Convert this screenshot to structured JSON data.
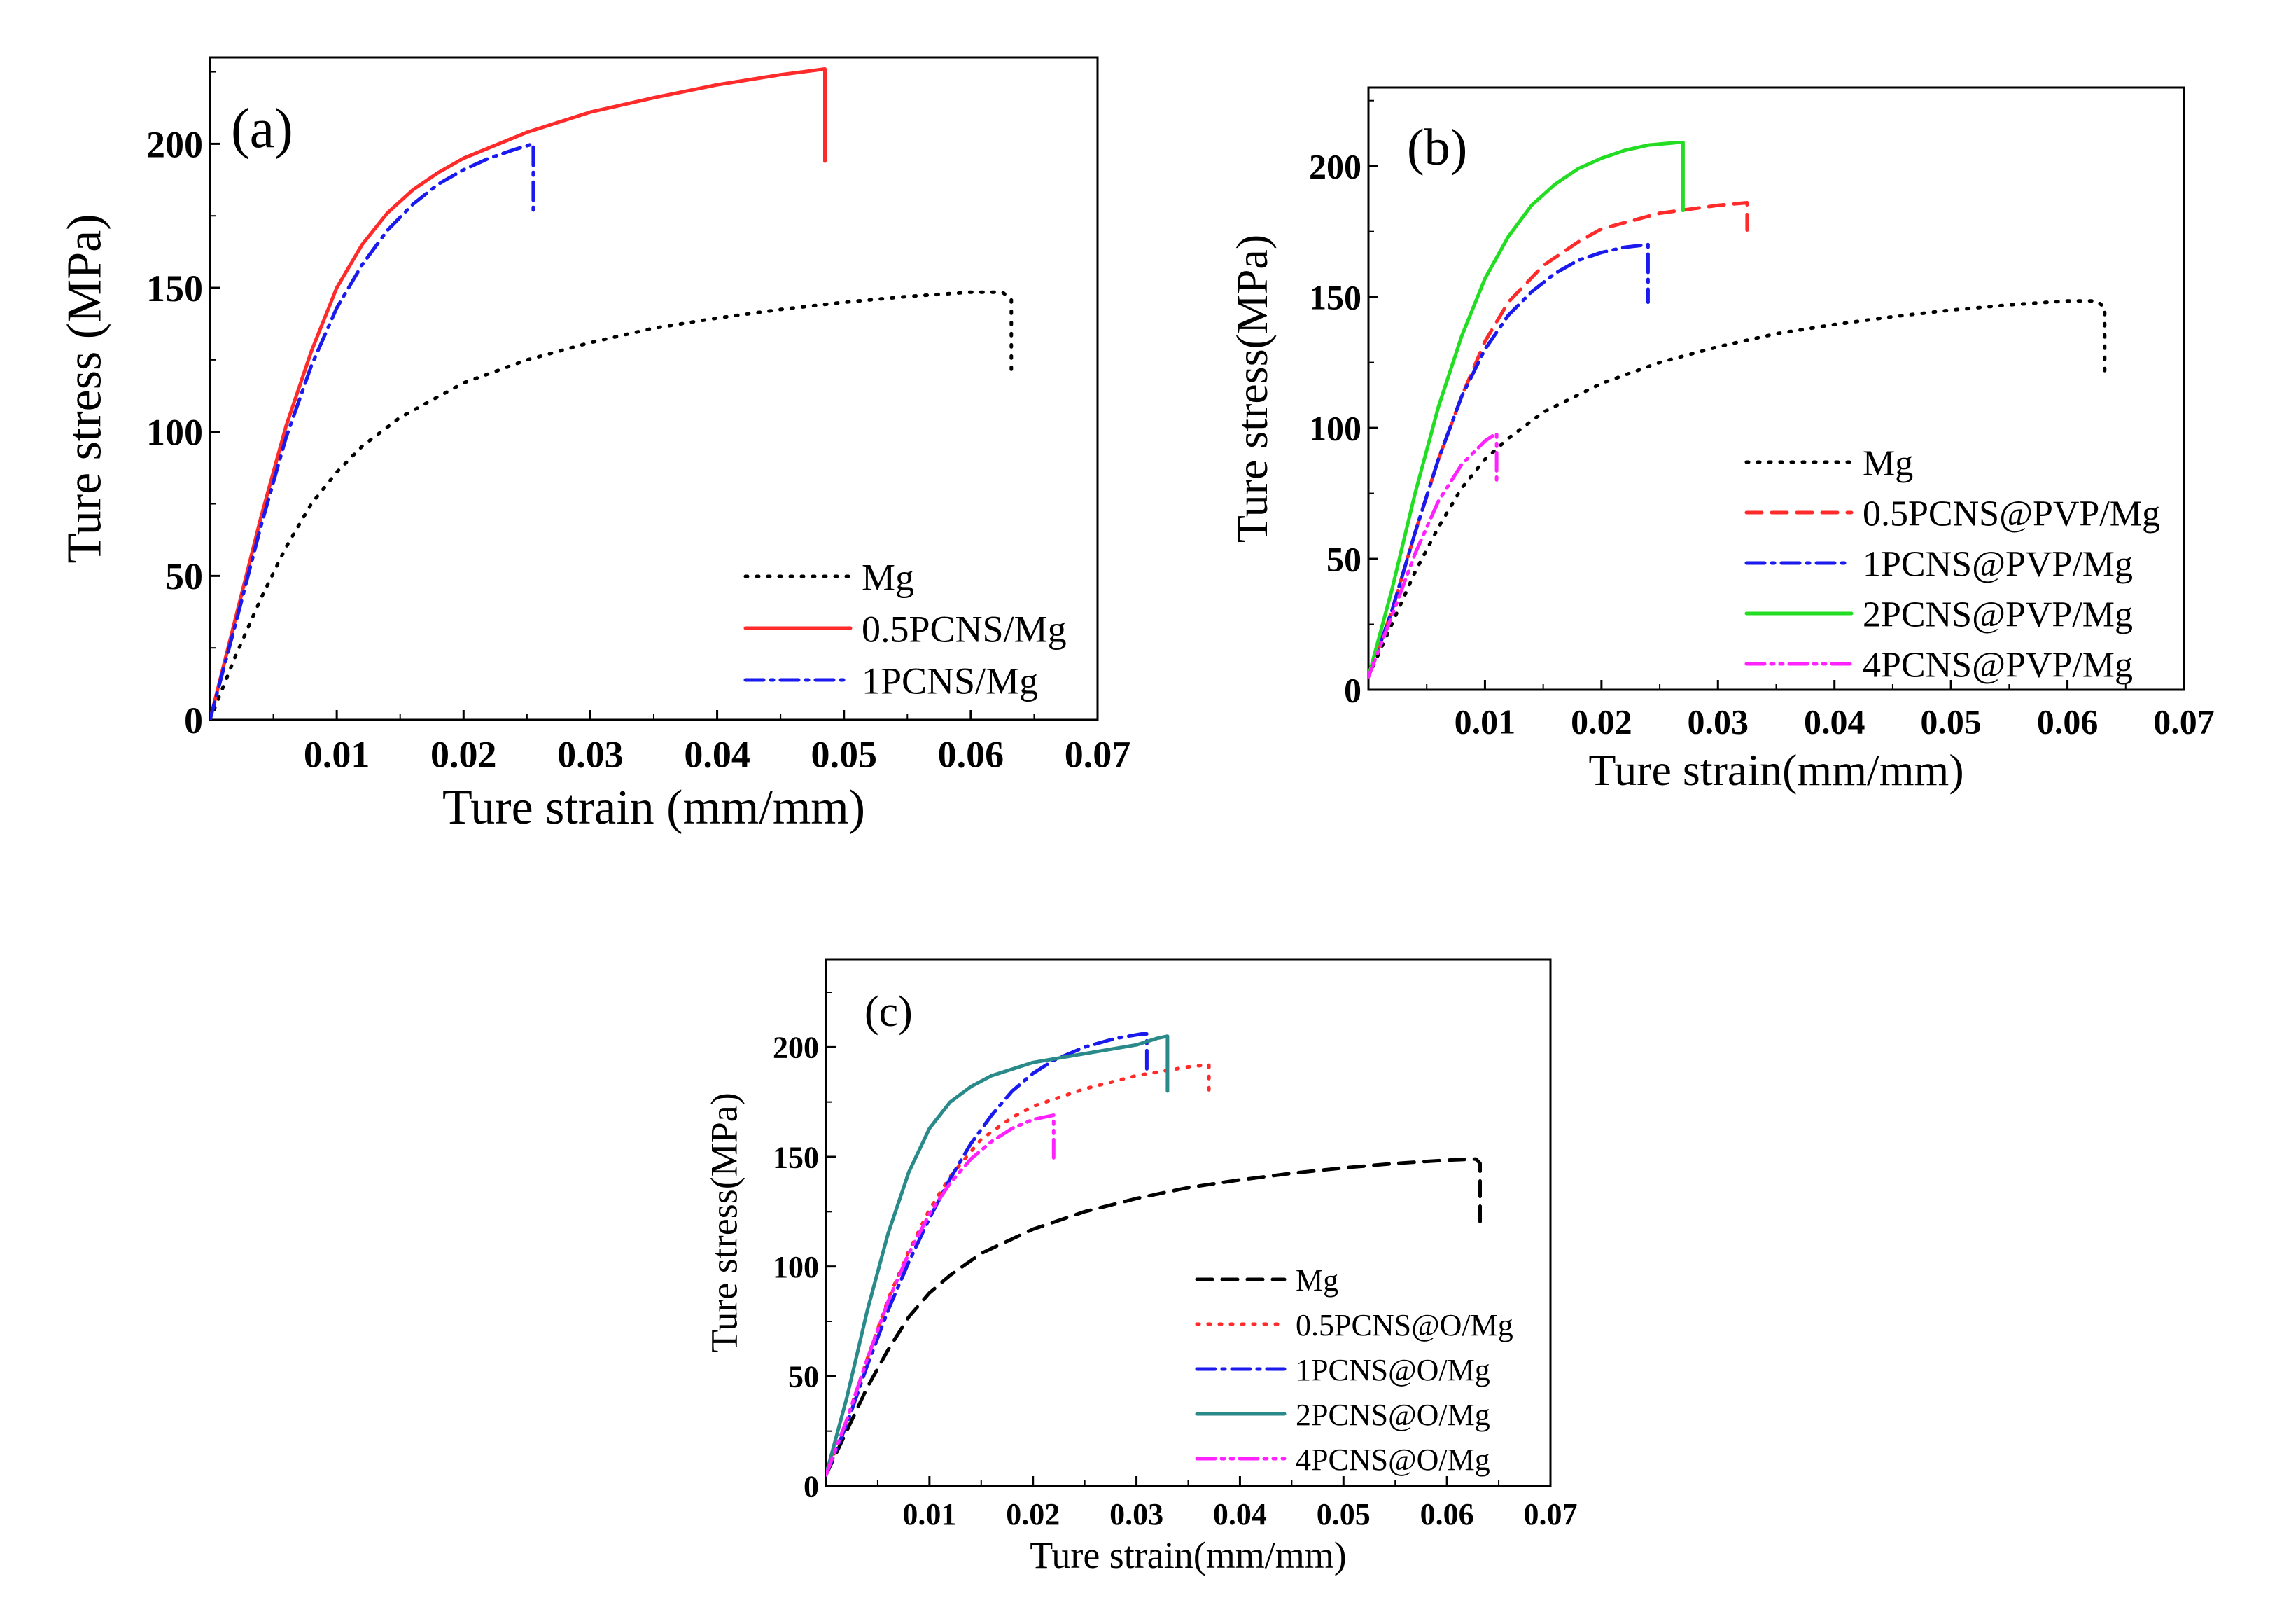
{
  "colors": {
    "black": "#000000",
    "red": "#ff2a2a",
    "blue": "#1a1aee",
    "green": "#22dd22",
    "magenta": "#ff22ff",
    "teal": "#2a8a8a"
  },
  "chart_data": [
    {
      "id": "a",
      "type": "line",
      "panel_label": "(a)",
      "xlabel": "Ture strain (mm/mm)",
      "ylabel": "Ture stress (MPa)",
      "xlim": [
        0,
        0.07
      ],
      "ylim": [
        0,
        230
      ],
      "xticks": [
        0.01,
        0.02,
        0.03,
        0.04,
        0.05,
        0.06,
        0.07
      ],
      "xtick_labels": [
        "0.01",
        "0.02",
        "0.03",
        "0.04",
        "0.05",
        "0.06",
        "0.07"
      ],
      "yticks": [
        0,
        50,
        100,
        150,
        200
      ],
      "ytick_labels": [
        "0",
        "50",
        "100",
        "150",
        "200"
      ],
      "legend_position": "bottom-right",
      "series": [
        {
          "name": "Mg",
          "color": "#000000",
          "dash": "dotted",
          "x": [
            0,
            0.002,
            0.004,
            0.006,
            0.008,
            0.01,
            0.012,
            0.015,
            0.02,
            0.025,
            0.03,
            0.035,
            0.04,
            0.045,
            0.05,
            0.055,
            0.06,
            0.0625,
            0.0632,
            0.0632
          ],
          "y": [
            0,
            22,
            42,
            60,
            75,
            86,
            95,
            105,
            117,
            125,
            131,
            136,
            139.5,
            142.5,
            145,
            147,
            148.5,
            148.5,
            146,
            120
          ]
        },
        {
          "name": "0.5PCNS/Mg",
          "color": "#ff2a2a",
          "dash": "solid",
          "x": [
            0,
            0.002,
            0.004,
            0.006,
            0.008,
            0.01,
            0.012,
            0.014,
            0.016,
            0.018,
            0.02,
            0.025,
            0.03,
            0.035,
            0.04,
            0.045,
            0.0485,
            0.0485
          ],
          "y": [
            0,
            35,
            70,
            102,
            128,
            150,
            165,
            176,
            184,
            190,
            195,
            204,
            211,
            216,
            220.5,
            224,
            226,
            194
          ]
        },
        {
          "name": "1PCNS/Mg",
          "color": "#1a1aee",
          "dash": "dashdot",
          "x": [
            0,
            0.002,
            0.004,
            0.006,
            0.008,
            0.01,
            0.012,
            0.014,
            0.016,
            0.018,
            0.02,
            0.022,
            0.024,
            0.0255,
            0.0255
          ],
          "y": [
            0,
            33,
            67,
            98,
            123,
            143,
            158,
            170,
            179,
            186,
            191,
            195,
            198,
            200,
            177
          ]
        }
      ]
    },
    {
      "id": "b",
      "type": "line",
      "panel_label": "(b)",
      "xlabel": "Ture strain(mm/mm)",
      "ylabel": "Ture stress(MPa)",
      "xlim": [
        0,
        0.07
      ],
      "ylim": [
        0,
        230
      ],
      "xticks": [
        0.01,
        0.02,
        0.03,
        0.04,
        0.05,
        0.06,
        0.07
      ],
      "xtick_labels": [
        "0.01",
        "0.02",
        "0.03",
        "0.04",
        "0.05",
        "0.06",
        "0.07"
      ],
      "yticks": [
        0,
        50,
        100,
        150,
        200
      ],
      "ytick_labels": [
        "0",
        "50",
        "100",
        "150",
        "200"
      ],
      "legend_position": "bottom-right",
      "series": [
        {
          "name": "Mg",
          "color": "#000000",
          "dash": "dotted",
          "x": [
            0,
            0.002,
            0.004,
            0.006,
            0.008,
            0.01,
            0.012,
            0.015,
            0.02,
            0.025,
            0.03,
            0.035,
            0.04,
            0.045,
            0.05,
            0.055,
            0.06,
            0.0625,
            0.0632,
            0.0632
          ],
          "y": [
            5,
            25,
            45,
            62,
            77,
            88,
            96,
            106,
            117,
            125,
            131,
            136,
            139.5,
            142.5,
            145,
            147,
            148.5,
            148.5,
            146,
            120
          ]
        },
        {
          "name": "0.5PCNS@PVP/Mg",
          "color": "#ff2a2a",
          "dash": "dashed",
          "x": [
            0,
            0.002,
            0.004,
            0.006,
            0.008,
            0.01,
            0.012,
            0.015,
            0.018,
            0.02,
            0.025,
            0.03,
            0.0325,
            0.0325
          ],
          "y": [
            5,
            30,
            60,
            88,
            112,
            133,
            148,
            162,
            171,
            176,
            182,
            185,
            186,
            175
          ]
        },
        {
          "name": "1PCNS@PVP/Mg",
          "color": "#1a1aee",
          "dash": "dashdot",
          "x": [
            0,
            0.002,
            0.004,
            0.006,
            0.008,
            0.01,
            0.012,
            0.014,
            0.016,
            0.018,
            0.02,
            0.022,
            0.024,
            0.024
          ],
          "y": [
            5,
            30,
            60,
            88,
            112,
            130,
            143,
            152,
            159,
            164,
            167,
            169,
            170,
            148
          ]
        },
        {
          "name": "2PCNS@PVP/Mg",
          "color": "#22dd22",
          "dash": "solid",
          "x": [
            0,
            0.002,
            0.004,
            0.006,
            0.008,
            0.01,
            0.012,
            0.014,
            0.016,
            0.018,
            0.02,
            0.022,
            0.024,
            0.0265,
            0.027,
            0.027
          ],
          "y": [
            5,
            38,
            75,
            108,
            135,
            157,
            173,
            185,
            193,
            199,
            203,
            206,
            208,
            209,
            209,
            183
          ]
        },
        {
          "name": "4PCNS@PVP/Mg",
          "color": "#ff22ff",
          "dash": "dashdotdot",
          "x": [
            0,
            0.002,
            0.004,
            0.006,
            0.008,
            0.01,
            0.011,
            0.011
          ],
          "y": [
            5,
            28,
            52,
            72,
            86,
            95,
            98,
            79
          ]
        }
      ]
    },
    {
      "id": "c",
      "type": "line",
      "panel_label": "(c)",
      "xlabel": "Ture strain(mm/mm)",
      "ylabel": "Ture stress(MPa)",
      "xlim": [
        0,
        0.07
      ],
      "ylim": [
        0,
        240
      ],
      "xticks": [
        0.01,
        0.02,
        0.03,
        0.04,
        0.05,
        0.06,
        0.07
      ],
      "xtick_labels": [
        "0.01",
        "0.02",
        "0.03",
        "0.04",
        "0.05",
        "0.06",
        "0.07"
      ],
      "yticks": [
        0,
        50,
        100,
        150,
        200
      ],
      "ytick_labels": [
        "0",
        "50",
        "100",
        "150",
        "200"
      ],
      "legend_position": "bottom-right",
      "series": [
        {
          "name": "Mg",
          "color": "#000000",
          "dash": "dashed",
          "x": [
            0,
            0.002,
            0.004,
            0.006,
            0.008,
            0.01,
            0.012,
            0.015,
            0.02,
            0.025,
            0.03,
            0.035,
            0.04,
            0.045,
            0.05,
            0.055,
            0.06,
            0.0628,
            0.0632,
            0.0632
          ],
          "y": [
            5,
            25,
            45,
            62,
            77,
            88,
            96,
            106,
            117,
            125,
            131,
            136,
            139.5,
            142.5,
            145,
            147,
            148.5,
            149,
            147,
            118
          ]
        },
        {
          "name": "0.5PCNS@O/Mg",
          "color": "#ff2a2a",
          "dash": "dotted",
          "x": [
            0,
            0.002,
            0.004,
            0.006,
            0.008,
            0.01,
            0.012,
            0.015,
            0.018,
            0.02,
            0.025,
            0.03,
            0.035,
            0.037,
            0.037
          ],
          "y": [
            5,
            30,
            58,
            85,
            107,
            126,
            141,
            158,
            168,
            173,
            181,
            187,
            191,
            192,
            177
          ]
        },
        {
          "name": "1PCNS@O/Mg",
          "color": "#1a1aee",
          "dash": "dashdot",
          "x": [
            0,
            0.002,
            0.004,
            0.006,
            0.008,
            0.01,
            0.012,
            0.014,
            0.016,
            0.018,
            0.02,
            0.022,
            0.025,
            0.028,
            0.0305,
            0.031,
            0.031
          ],
          "y": [
            5,
            28,
            55,
            80,
            102,
            122,
            140,
            156,
            169,
            180,
            188,
            194,
            200,
            204,
            206,
            206,
            188
          ]
        },
        {
          "name": "2PCNS@O/Mg",
          "color": "#2a8a8a",
          "dash": "solid",
          "x": [
            0,
            0.002,
            0.004,
            0.006,
            0.008,
            0.01,
            0.012,
            0.014,
            0.016,
            0.018,
            0.02,
            0.025,
            0.03,
            0.032,
            0.033,
            0.033
          ],
          "y": [
            5,
            40,
            80,
            115,
            143,
            163,
            175,
            182,
            187,
            190,
            193,
            197,
            201,
            204,
            205,
            180
          ]
        },
        {
          "name": "4PCNS@O/Mg",
          "color": "#ff22ff",
          "dash": "dashdotdot",
          "x": [
            0,
            0.002,
            0.004,
            0.006,
            0.008,
            0.01,
            0.012,
            0.014,
            0.016,
            0.018,
            0.02,
            0.022,
            0.022
          ],
          "y": [
            5,
            30,
            58,
            84,
            106,
            124,
            138,
            149,
            157,
            163,
            167,
            169,
            147
          ]
        }
      ]
    }
  ]
}
